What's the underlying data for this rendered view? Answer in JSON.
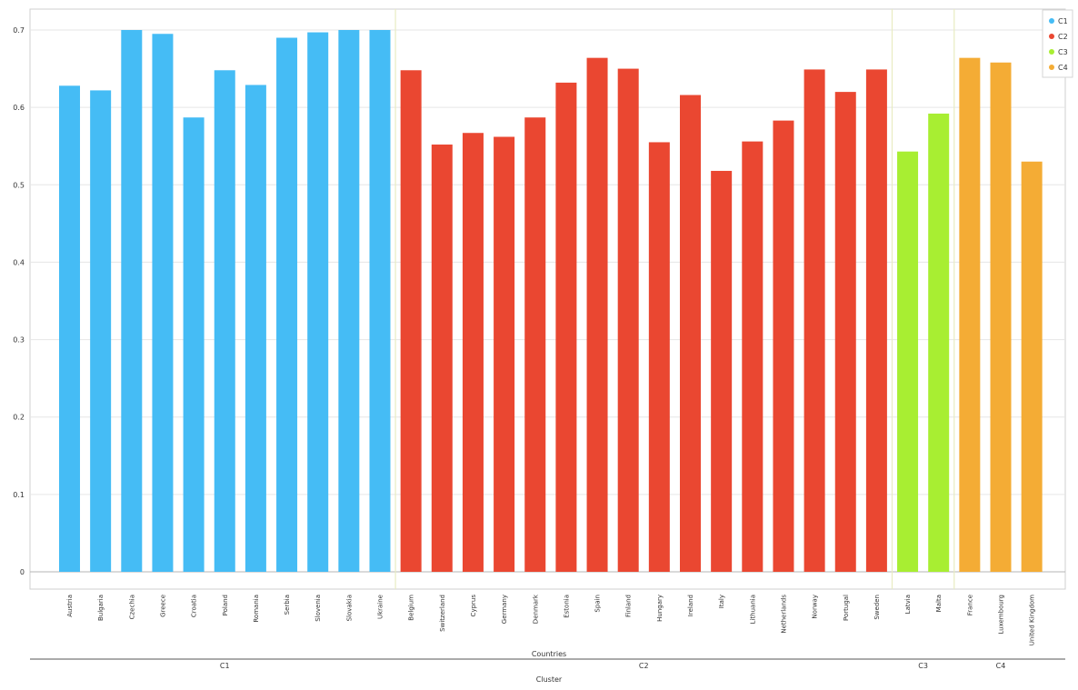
{
  "chart_data": {
    "type": "bar",
    "title": "",
    "ylabel": "",
    "xlabel": "Countries",
    "group_axis_label": "Cluster",
    "ylim": [
      0,
      0.7
    ],
    "yticks": [
      0,
      0.1,
      0.2,
      0.3,
      0.4,
      0.5,
      0.6,
      0.7
    ],
    "ytick_labels": [
      "0",
      "0.1",
      "0.2",
      "0.3",
      "0.4",
      "0.5",
      "0.6",
      "0.7"
    ],
    "grid": true,
    "legend_position": "top-right",
    "series": [
      {
        "name": "C1",
        "color": "#45bcf5",
        "categories": [
          "Austria",
          "Bulgaria",
          "Czechia",
          "Greece",
          "Croatia",
          "Poland",
          "Romania",
          "Serbia",
          "Slovenia",
          "Slovakia",
          "Ukraine"
        ],
        "values": [
          0.628,
          0.622,
          0.7,
          0.695,
          0.587,
          0.648,
          0.629,
          0.69,
          0.697,
          0.7,
          0.7
        ]
      },
      {
        "name": "C2",
        "color": "#ea4731",
        "categories": [
          "Belgium",
          "Switzerland",
          "Cyprus",
          "Germany",
          "Denmark",
          "Estonia",
          "Spain",
          "Finland",
          "Hungary",
          "Ireland",
          "Italy",
          "Lithuania",
          "Netherlands",
          "Norway",
          "Portugal",
          "Sweden"
        ],
        "values": [
          0.648,
          0.552,
          0.567,
          0.562,
          0.587,
          0.632,
          0.664,
          0.65,
          0.555,
          0.616,
          0.518,
          0.556,
          0.583,
          0.649,
          0.62,
          0.649
        ]
      },
      {
        "name": "C3",
        "color": "#a8ee32",
        "categories": [
          "Latvia",
          "Malta"
        ],
        "values": [
          0.543,
          0.592
        ]
      },
      {
        "name": "C4",
        "color": "#f4ac35",
        "categories": [
          "France",
          "Luxembourg",
          "United Kingdom"
        ],
        "values": [
          0.664,
          0.658,
          0.53
        ]
      }
    ]
  }
}
